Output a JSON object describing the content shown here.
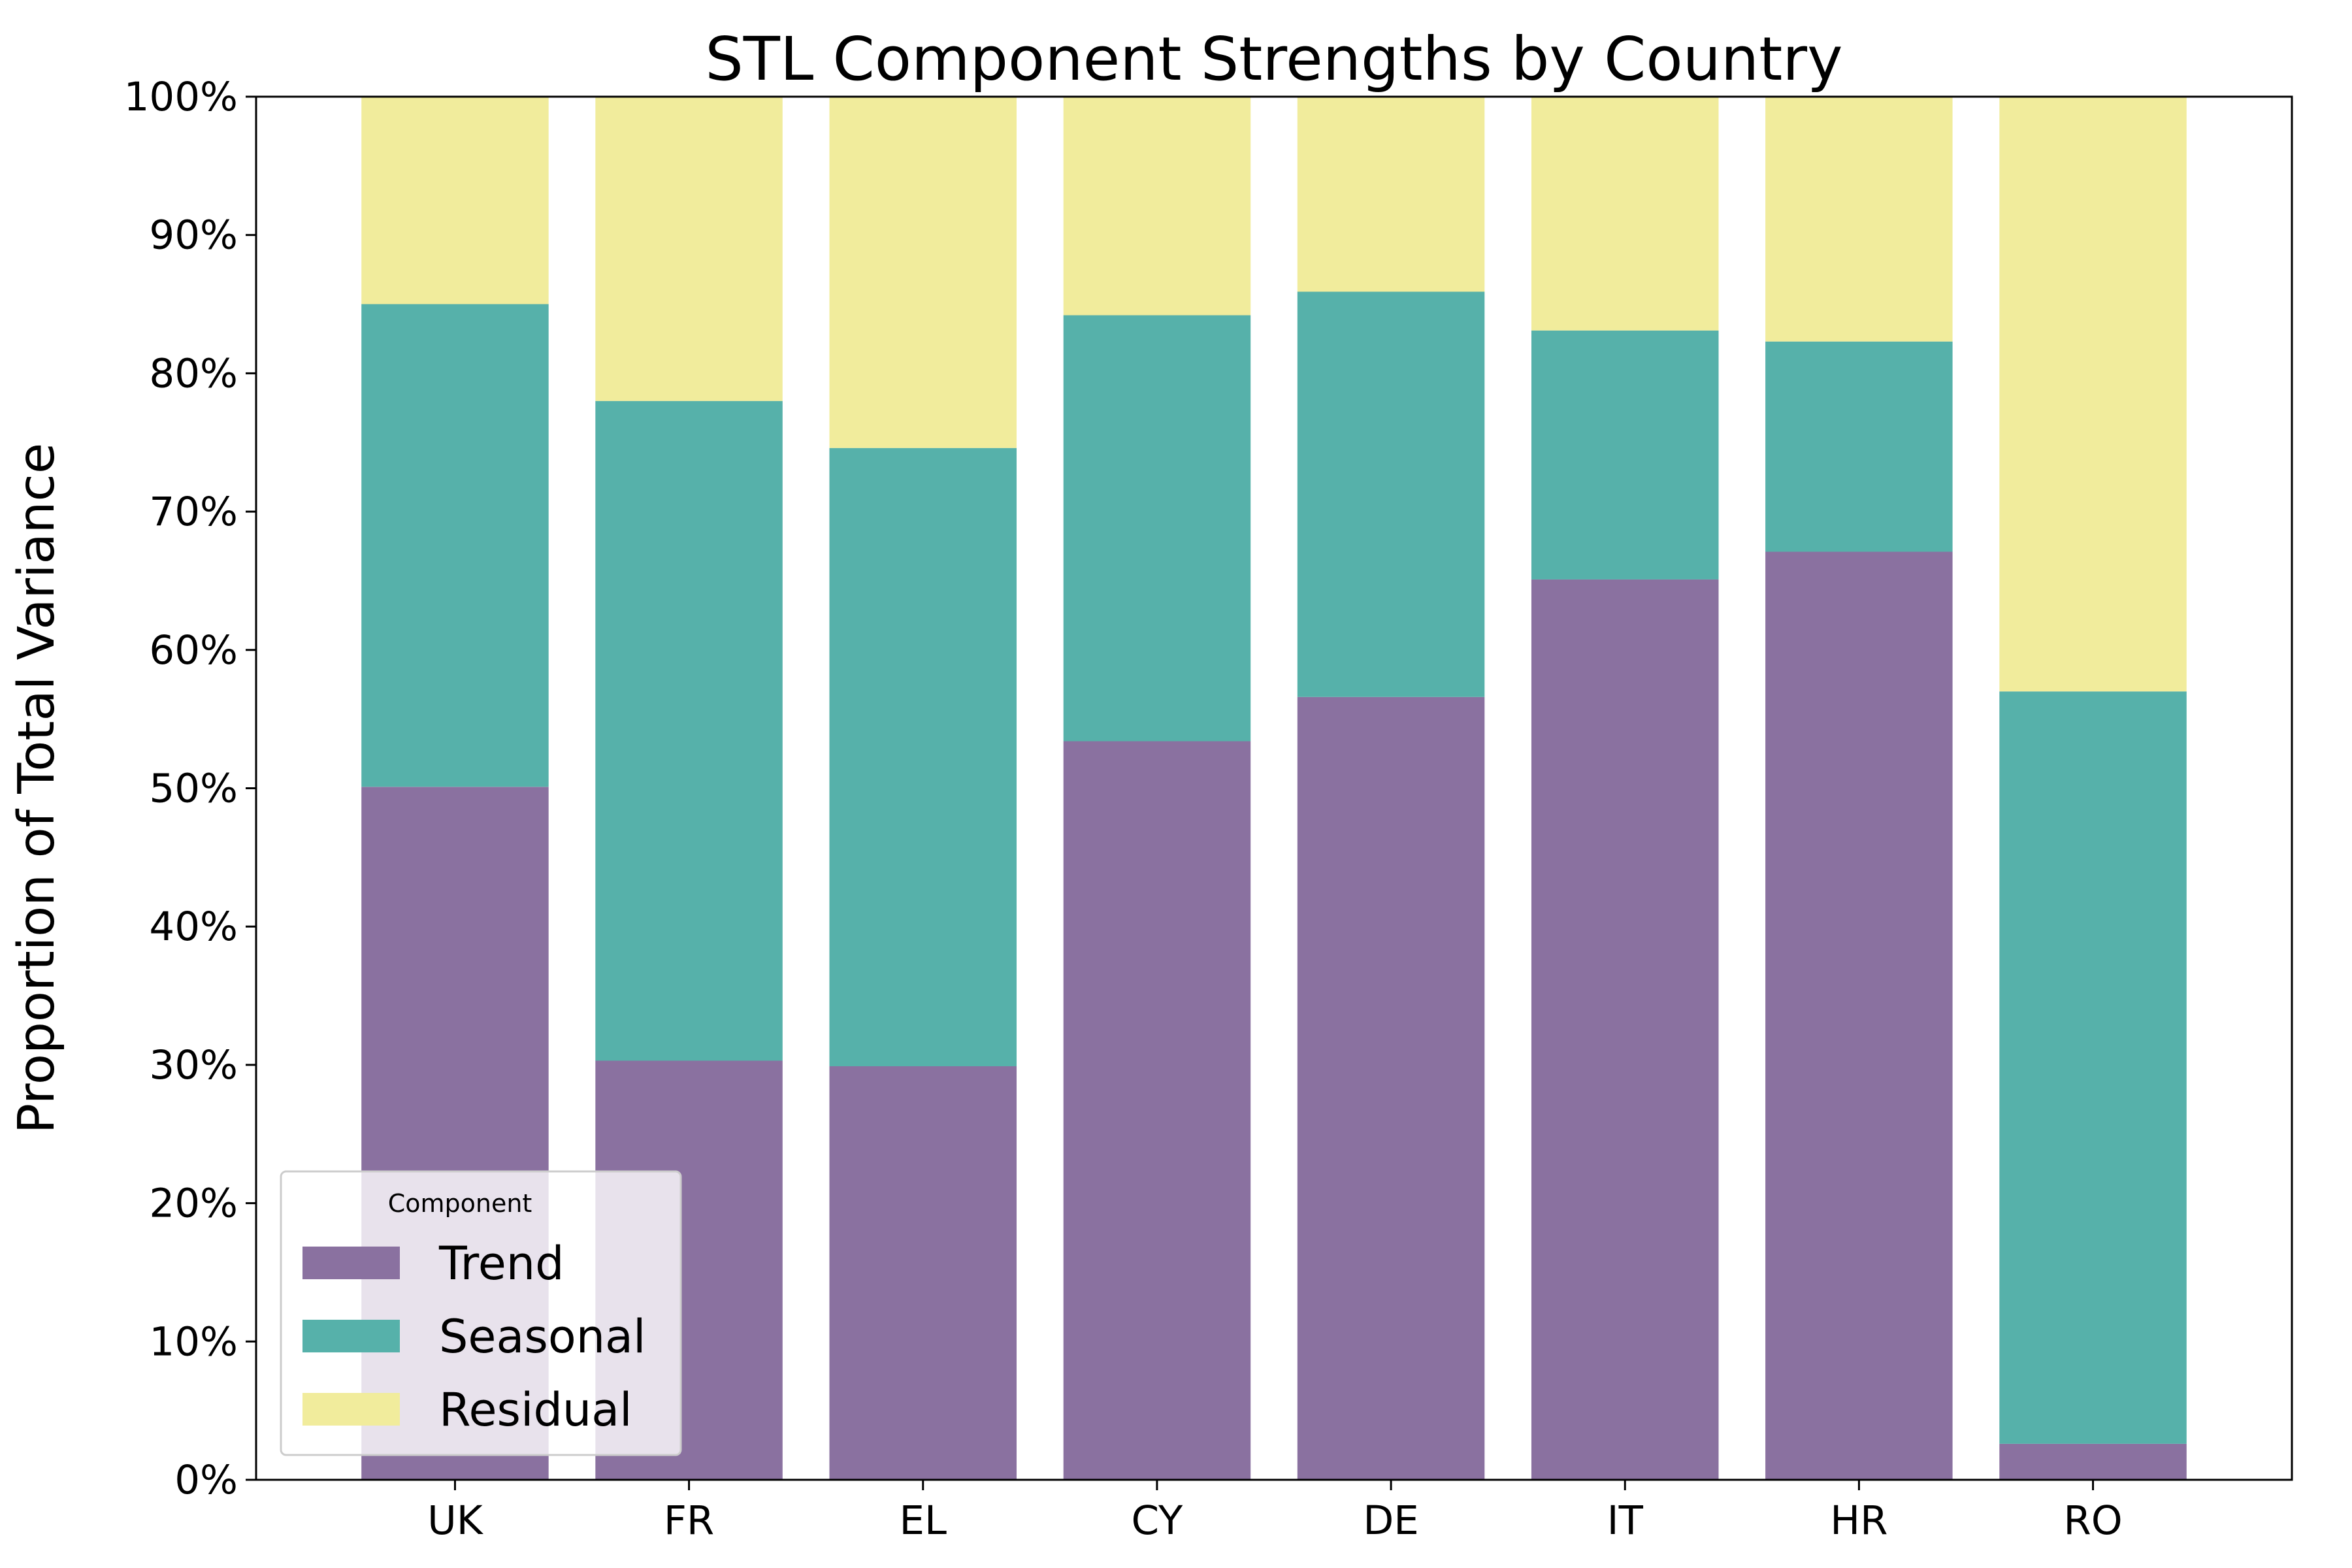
{
  "chart_data": {
    "type": "bar",
    "stacked": true,
    "title": "STL Component Strengths by Country",
    "xlabel": "",
    "ylabel": "Proportion of Total Variance",
    "ylim": [
      0,
      1
    ],
    "yticks": [
      "0%",
      "10%",
      "20%",
      "30%",
      "40%",
      "50%",
      "60%",
      "70%",
      "80%",
      "90%",
      "100%"
    ],
    "grid": false,
    "legend": {
      "title": "Component",
      "placement": "lower-left"
    },
    "categories": [
      "UK",
      "FR",
      "EL",
      "CY",
      "DE",
      "IT",
      "HR",
      "RO"
    ],
    "series": [
      {
        "name": "Trend",
        "color": "#8a71a0",
        "values": [
          0.501,
          0.303,
          0.299,
          0.534,
          0.566,
          0.651,
          0.671,
          0.026
        ]
      },
      {
        "name": "Seasonal",
        "color": "#56b1aa",
        "values": [
          0.349,
          0.477,
          0.447,
          0.308,
          0.293,
          0.18,
          0.152,
          0.544
        ]
      },
      {
        "name": "Residual",
        "color": "#f1ec9c",
        "values": [
          0.15,
          0.22,
          0.254,
          0.158,
          0.141,
          0.169,
          0.177,
          0.43
        ]
      }
    ]
  }
}
